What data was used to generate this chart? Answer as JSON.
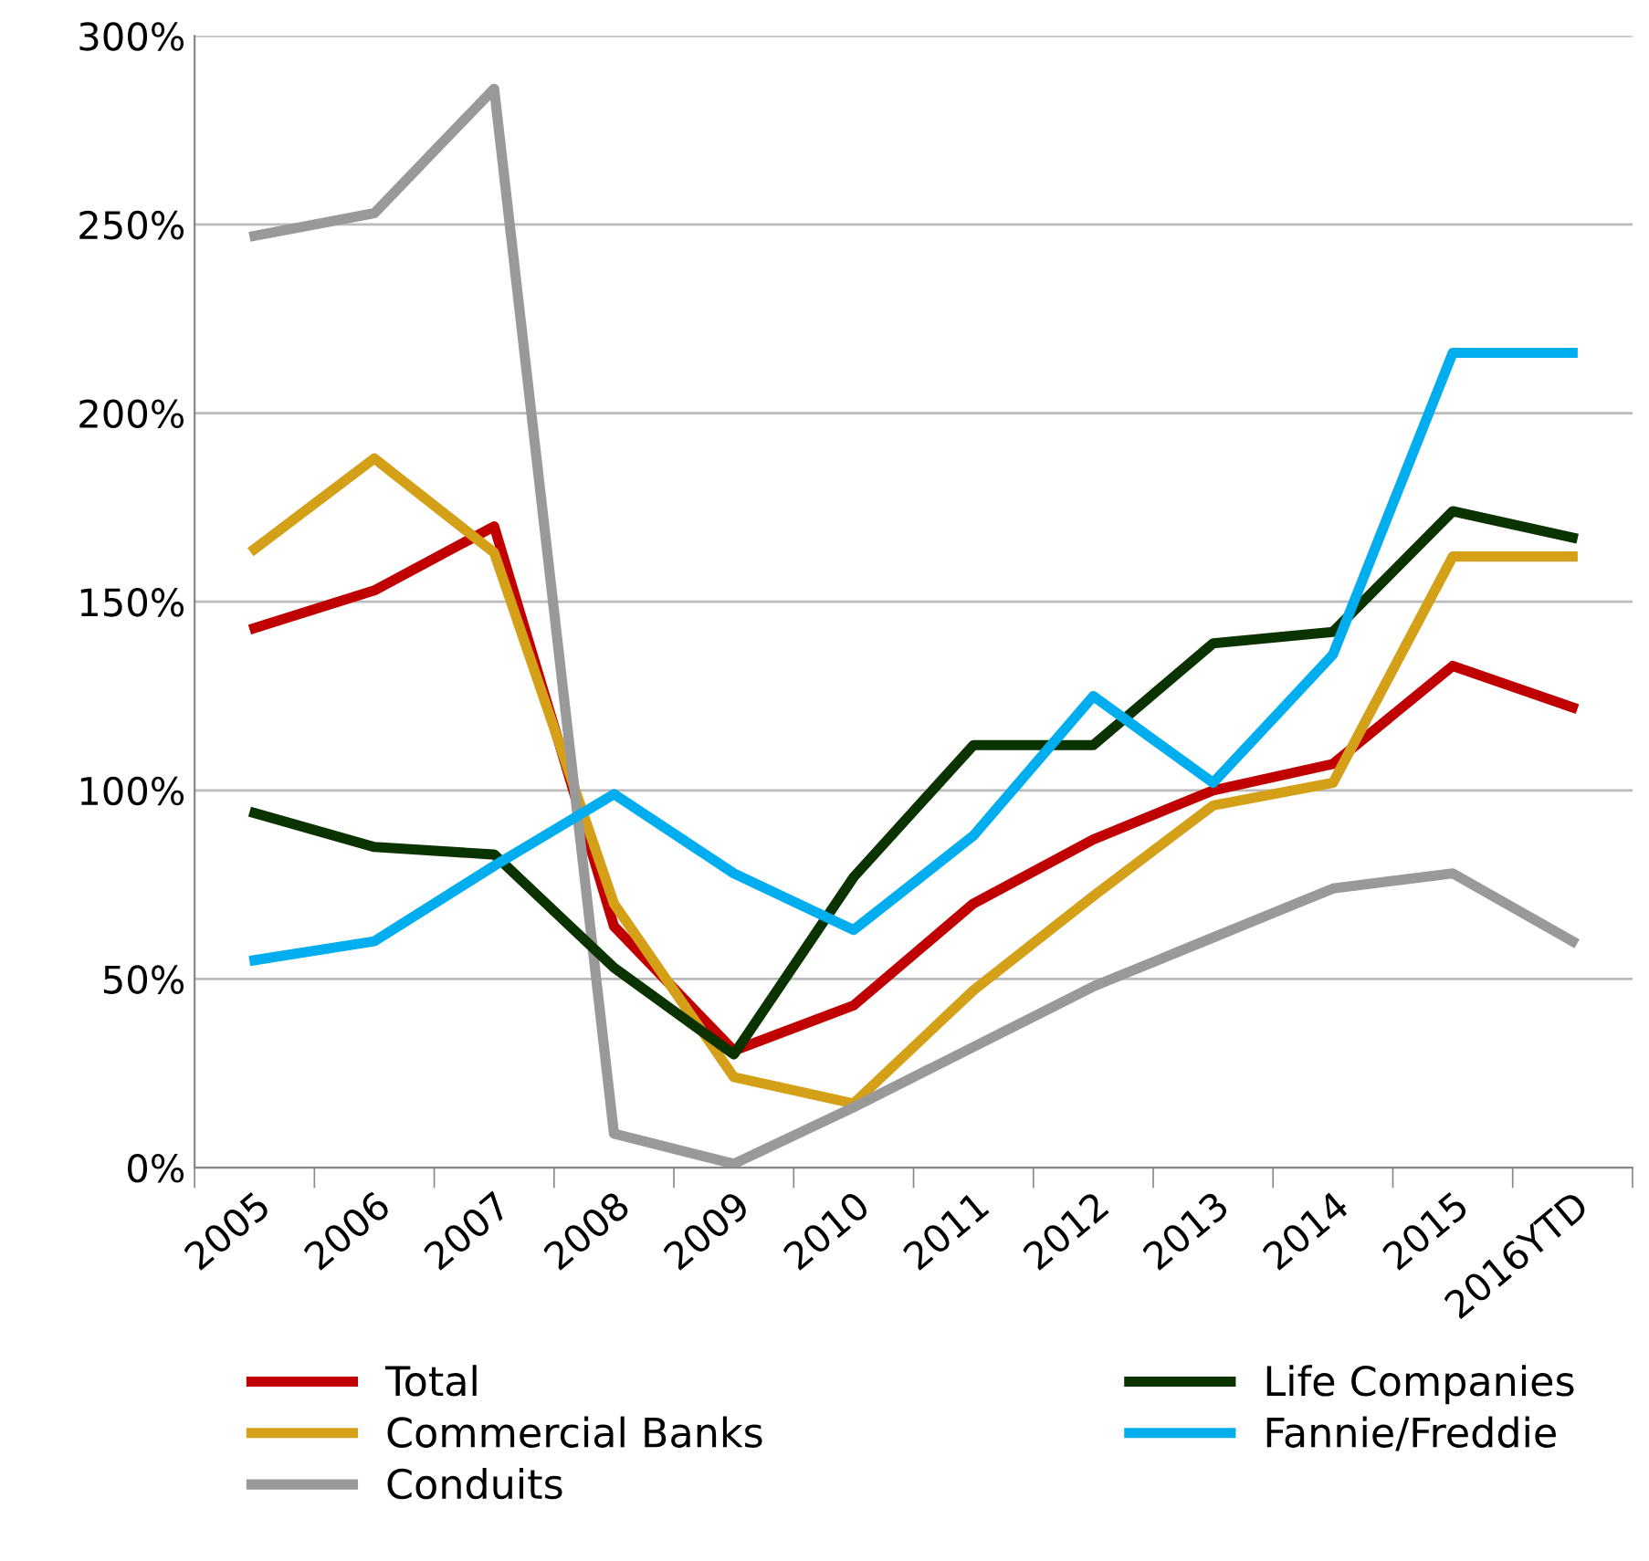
{
  "chart_data": {
    "type": "line",
    "categories": [
      "2005",
      "2006",
      "2007",
      "2008",
      "2009",
      "2010",
      "2011",
      "2012",
      "2013",
      "2014",
      "2015",
      "2016YTD"
    ],
    "ylim": [
      0,
      300
    ],
    "yticks": [
      {
        "value": 0,
        "label": "0%"
      },
      {
        "value": 50,
        "label": "50%"
      },
      {
        "value": 100,
        "label": "100%"
      },
      {
        "value": 150,
        "label": "150%"
      },
      {
        "value": 200,
        "label": "200%"
      },
      {
        "value": 250,
        "label": "250%"
      },
      {
        "value": 300,
        "label": "300%"
      }
    ],
    "grid": "y",
    "legend": "bottom",
    "marker": "none",
    "line_style": "solid",
    "series": [
      {
        "name": "Total",
        "color": "#c00000",
        "values": [
          143,
          153,
          170,
          64,
          31,
          43,
          70,
          87,
          100,
          107,
          133,
          122
        ]
      },
      {
        "name": "Commercial Banks",
        "color": "#d4a017",
        "values": [
          164,
          188,
          163,
          70,
          24,
          17,
          47,
          72,
          96,
          102,
          162,
          162
        ]
      },
      {
        "name": "Conduits",
        "color": "#999999",
        "values": [
          247,
          253,
          286,
          9,
          1,
          16,
          32,
          48,
          61,
          74,
          78,
          60
        ]
      },
      {
        "name": "Life Companies",
        "color": "#0b3300",
        "values": [
          94,
          85,
          83,
          53,
          30,
          77,
          112,
          112,
          139,
          142,
          174,
          167
        ]
      },
      {
        "name": "Fannie/Freddie",
        "color": "#00aeef",
        "values": [
          55,
          60,
          80,
          99,
          78,
          63,
          88,
          125,
          102,
          136,
          216,
          216
        ]
      }
    ]
  }
}
